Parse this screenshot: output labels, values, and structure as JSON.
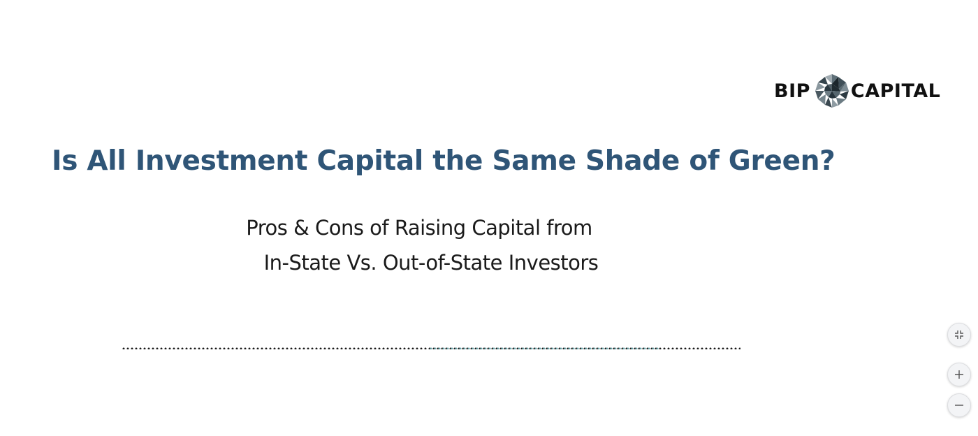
{
  "logo": {
    "left_word": "BIP",
    "right_word": "CAPITAL",
    "mark_icon": "bip-capital-polygon-mark"
  },
  "slide": {
    "title": "Is All Investment Capital the Same Shade of Green?",
    "subtitle_line1": "Pros & Cons of Raising Capital from",
    "subtitle_line2": "In-State Vs. Out-of-State Investors"
  },
  "controls": {
    "fit_icon": "collapse-icon",
    "zoom_in_icon": "plus-icon",
    "zoom_out_icon": "minus-icon"
  },
  "colors": {
    "title": "#2f5577",
    "text": "#1a1a1a",
    "logo_text": "#111111",
    "accent_rule": "#6aa3a8"
  }
}
